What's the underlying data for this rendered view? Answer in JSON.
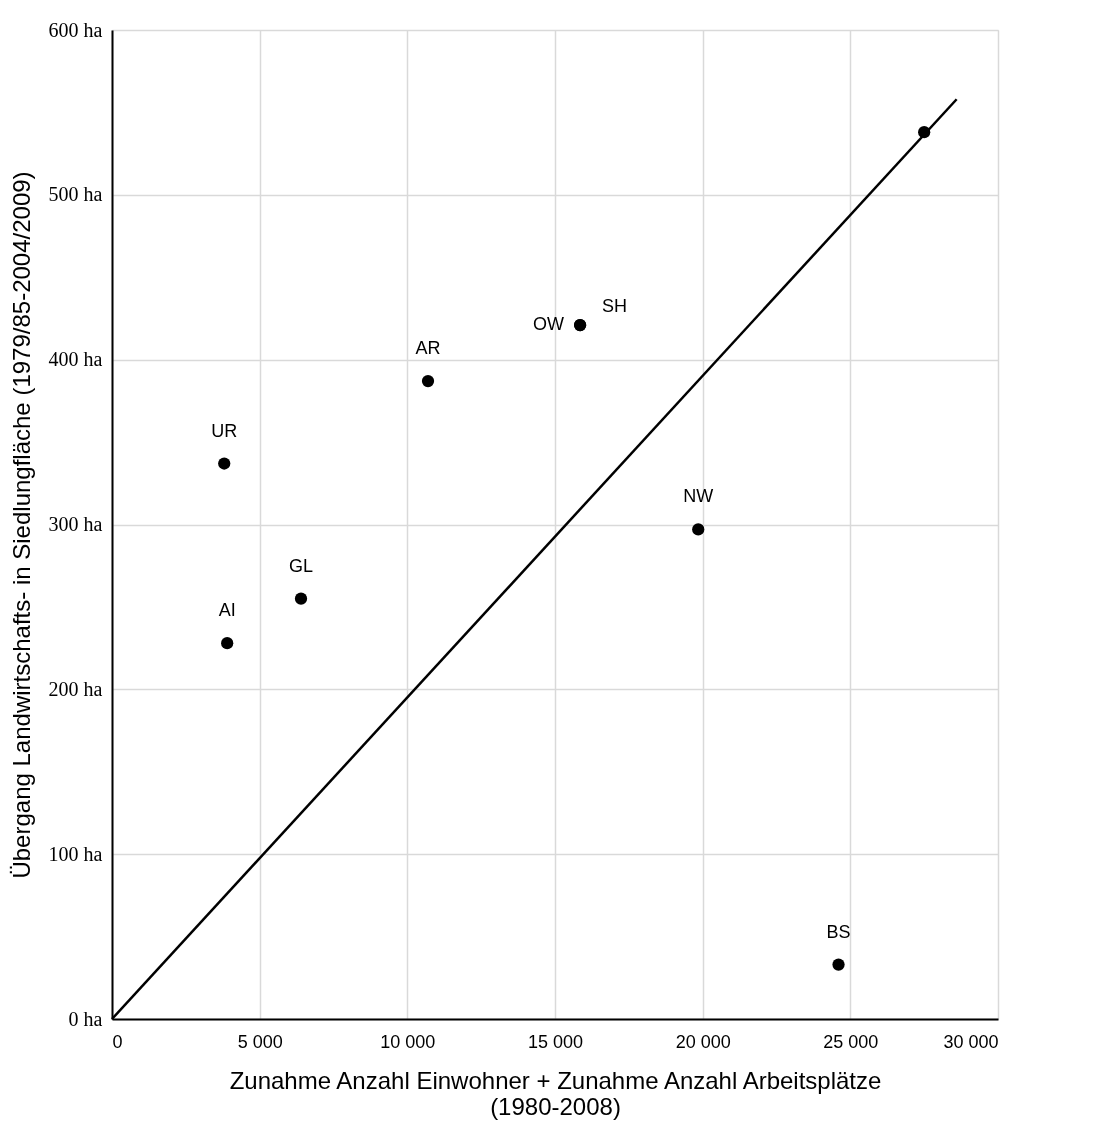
{
  "chart_data": {
    "type": "scatter",
    "xlabel": "Zunahme Anzahl Einwohner + Zunahme Anzahl Arbeitsplätze\n(1980-2008)",
    "ylabel": "Übergang Landwirtschafts- in Siedlungfläche (1979/85-2004/2009)",
    "xlim": [
      0,
      30000
    ],
    "ylim": [
      0,
      600
    ],
    "xticks": [
      0,
      {
        "value": 5000,
        "label": "5 000"
      },
      {
        "value": 10000,
        "label": "10 000"
      },
      {
        "value": 15000,
        "label": "15 000"
      },
      {
        "value": 20000,
        "label": "20 000"
      },
      {
        "value": 25000,
        "label": "25 000"
      },
      {
        "value": 30000,
        "label": "30 000"
      }
    ],
    "yticks": [
      {
        "value": 0,
        "label": "0 ha"
      },
      {
        "value": 100,
        "label": "100 ha"
      },
      {
        "value": 200,
        "label": "200 ha"
      },
      {
        "value": 300,
        "label": "300 ha"
      },
      {
        "value": 400,
        "label": "400 ha"
      },
      {
        "value": 500,
        "label": "500 ha"
      },
      {
        "value": 600,
        "label": "600 ha"
      }
    ],
    "grid": true,
    "marker": "circle",
    "series": [
      {
        "type": "scatter",
        "color": "#000000",
        "x": [
          3800,
          3900,
          6400,
          10700,
          15850,
          15850,
          19850,
          24600,
          27500
        ],
        "values": [
          337,
          228,
          255,
          387,
          421,
          421,
          297,
          33,
          538
        ]
      },
      {
        "type": "line",
        "color": "#000000",
        "line_style": "solid",
        "marker": "none",
        "x": [
          0,
          28600
        ],
        "values": [
          0,
          558
        ]
      }
    ],
    "annotations": [
      {
        "text": "UR",
        "x": 3800,
        "y": 337
      },
      {
        "text": "AI",
        "x": 3900,
        "y": 228
      },
      {
        "text": "GL",
        "x": 6400,
        "y": 255
      },
      {
        "text": "AR",
        "x": 10700,
        "y": 387
      },
      {
        "text": "OW",
        "x": 15850,
        "y": 421
      },
      {
        "text": "SH",
        "x": 15850,
        "y": 421
      },
      {
        "text": "NW",
        "x": 19850,
        "y": 297
      },
      {
        "text": "BS",
        "x": 24600,
        "y": 33
      }
    ]
  }
}
